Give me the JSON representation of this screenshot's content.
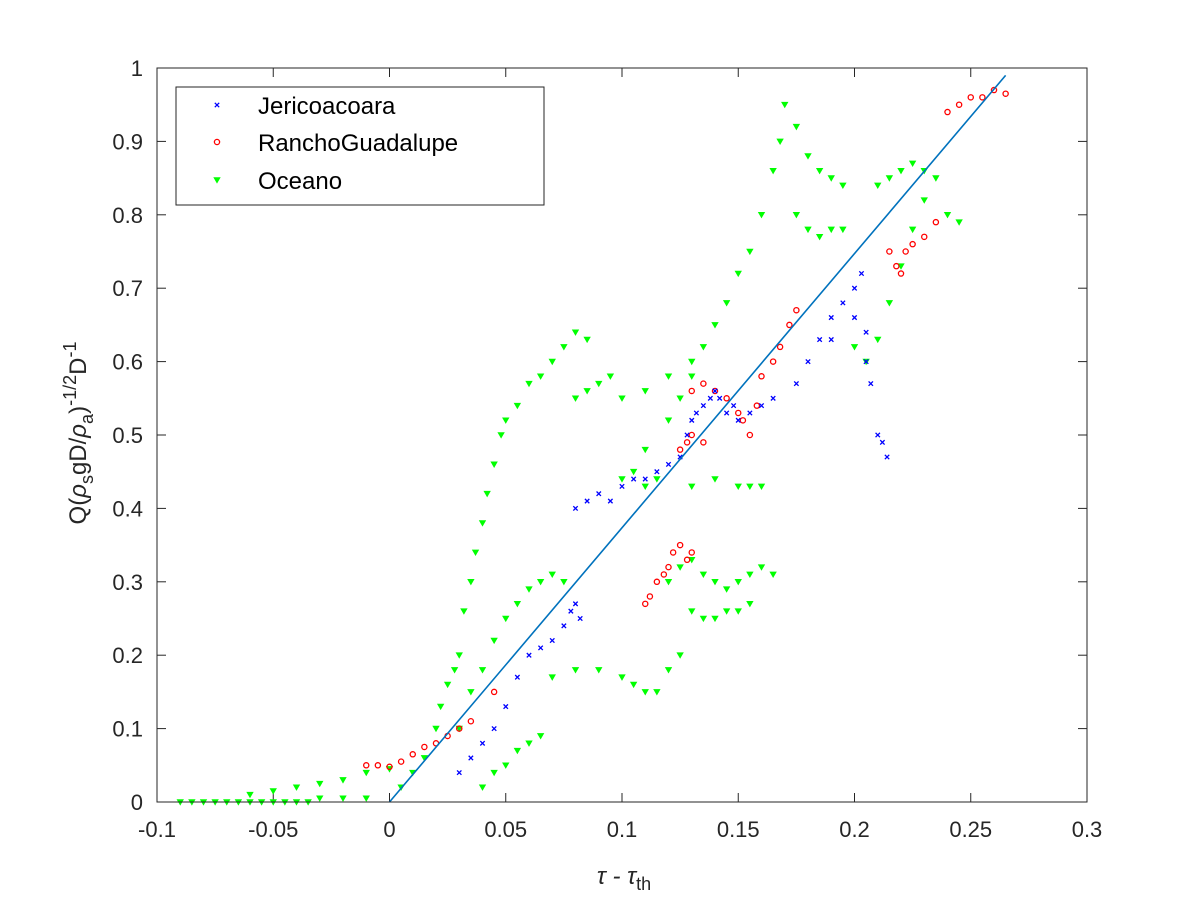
{
  "chart_data": {
    "type": "scatter",
    "title": "",
    "xlabel": "τ - τth",
    "xlabel_main": "τ - τ",
    "xlabel_sub": "th",
    "ylabel": "Q(ρsgD/ρa)^-1/2 D^-1",
    "ylabel_parts": {
      "q": "Q(",
      "rho1": "ρ",
      "sub_s": "s",
      "gd": "gD/",
      "rho2": "ρ",
      "sub_a": "a",
      "paren": ")",
      "exp1": "-1/2",
      "d": "D",
      "exp2": "-1"
    },
    "xlim": [
      -0.1,
      0.3
    ],
    "ylim": [
      0,
      1
    ],
    "xticks": [
      -0.1,
      -0.05,
      0,
      0.05,
      0.1,
      0.15,
      0.2,
      0.25,
      0.3
    ],
    "xtick_labels": [
      "-0.1",
      "-0.05",
      "0",
      "0.05",
      "0.1",
      "0.15",
      "0.2",
      "0.25",
      "0.3"
    ],
    "yticks": [
      0,
      0.1,
      0.2,
      0.3,
      0.4,
      0.5,
      0.6,
      0.7,
      0.8,
      0.9,
      1
    ],
    "ytick_labels": [
      "0",
      "0.1",
      "0.2",
      "0.3",
      "0.4",
      "0.5",
      "0.6",
      "0.7",
      "0.8",
      "0.9",
      "1"
    ],
    "grid": false,
    "legend_position": "top-left",
    "fit_line": {
      "color": "#0072BD",
      "points": [
        [
          0,
          0
        ],
        [
          0.265,
          0.99
        ]
      ]
    },
    "series": [
      {
        "name": "Jericoacoara",
        "color": "#0000FF",
        "marker": "x",
        "points": [
          [
            0.03,
            0.04
          ],
          [
            0.035,
            0.06
          ],
          [
            0.04,
            0.08
          ],
          [
            0.045,
            0.1
          ],
          [
            0.05,
            0.13
          ],
          [
            0.055,
            0.17
          ],
          [
            0.06,
            0.2
          ],
          [
            0.065,
            0.21
          ],
          [
            0.07,
            0.22
          ],
          [
            0.075,
            0.24
          ],
          [
            0.078,
            0.26
          ],
          [
            0.08,
            0.27
          ],
          [
            0.082,
            0.25
          ],
          [
            0.08,
            0.4
          ],
          [
            0.085,
            0.41
          ],
          [
            0.09,
            0.42
          ],
          [
            0.095,
            0.41
          ],
          [
            0.1,
            0.43
          ],
          [
            0.105,
            0.44
          ],
          [
            0.11,
            0.44
          ],
          [
            0.115,
            0.45
          ],
          [
            0.12,
            0.46
          ],
          [
            0.125,
            0.47
          ],
          [
            0.128,
            0.5
          ],
          [
            0.13,
            0.52
          ],
          [
            0.132,
            0.53
          ],
          [
            0.135,
            0.54
          ],
          [
            0.138,
            0.55
          ],
          [
            0.14,
            0.56
          ],
          [
            0.142,
            0.55
          ],
          [
            0.145,
            0.53
          ],
          [
            0.148,
            0.54
          ],
          [
            0.15,
            0.52
          ],
          [
            0.155,
            0.53
          ],
          [
            0.16,
            0.54
          ],
          [
            0.165,
            0.55
          ],
          [
            0.175,
            0.57
          ],
          [
            0.18,
            0.6
          ],
          [
            0.185,
            0.63
          ],
          [
            0.19,
            0.66
          ],
          [
            0.195,
            0.68
          ],
          [
            0.2,
            0.7
          ],
          [
            0.203,
            0.72
          ],
          [
            0.205,
            0.6
          ],
          [
            0.207,
            0.57
          ],
          [
            0.21,
            0.5
          ],
          [
            0.212,
            0.49
          ],
          [
            0.214,
            0.47
          ],
          [
            0.205,
            0.64
          ],
          [
            0.2,
            0.66
          ],
          [
            0.19,
            0.63
          ]
        ]
      },
      {
        "name": "RanchoGuadalupe",
        "color": "#FF0000",
        "marker": "o",
        "points": [
          [
            -0.01,
            0.05
          ],
          [
            -0.005,
            0.05
          ],
          [
            0,
            0.048
          ],
          [
            0.005,
            0.055
          ],
          [
            0.01,
            0.065
          ],
          [
            0.015,
            0.075
          ],
          [
            0.02,
            0.08
          ],
          [
            0.025,
            0.09
          ],
          [
            0.03,
            0.1
          ],
          [
            0.035,
            0.11
          ],
          [
            0.045,
            0.15
          ],
          [
            0.11,
            0.27
          ],
          [
            0.112,
            0.28
          ],
          [
            0.115,
            0.3
          ],
          [
            0.118,
            0.31
          ],
          [
            0.12,
            0.32
          ],
          [
            0.122,
            0.34
          ],
          [
            0.125,
            0.35
          ],
          [
            0.13,
            0.34
          ],
          [
            0.128,
            0.33
          ],
          [
            0.125,
            0.48
          ],
          [
            0.128,
            0.49
          ],
          [
            0.13,
            0.5
          ],
          [
            0.135,
            0.49
          ],
          [
            0.13,
            0.56
          ],
          [
            0.135,
            0.57
          ],
          [
            0.14,
            0.56
          ],
          [
            0.145,
            0.55
          ],
          [
            0.15,
            0.53
          ],
          [
            0.152,
            0.52
          ],
          [
            0.155,
            0.5
          ],
          [
            0.158,
            0.54
          ],
          [
            0.16,
            0.58
          ],
          [
            0.165,
            0.6
          ],
          [
            0.168,
            0.62
          ],
          [
            0.172,
            0.65
          ],
          [
            0.175,
            0.67
          ],
          [
            0.215,
            0.75
          ],
          [
            0.218,
            0.73
          ],
          [
            0.22,
            0.72
          ],
          [
            0.222,
            0.75
          ],
          [
            0.225,
            0.76
          ],
          [
            0.23,
            0.77
          ],
          [
            0.235,
            0.79
          ],
          [
            0.24,
            0.94
          ],
          [
            0.245,
            0.95
          ],
          [
            0.25,
            0.96
          ],
          [
            0.255,
            0.96
          ],
          [
            0.26,
            0.97
          ],
          [
            0.265,
            0.965
          ]
        ]
      },
      {
        "name": "Oceano",
        "color": "#00FF00",
        "marker": "v",
        "points": [
          [
            -0.09,
            0
          ],
          [
            -0.085,
            0
          ],
          [
            -0.08,
            0
          ],
          [
            -0.075,
            0
          ],
          [
            -0.07,
            0
          ],
          [
            -0.065,
            0
          ],
          [
            -0.06,
            0
          ],
          [
            -0.055,
            0
          ],
          [
            -0.05,
            0
          ],
          [
            -0.045,
            0
          ],
          [
            -0.04,
            0
          ],
          [
            -0.035,
            0
          ],
          [
            -0.03,
            0.005
          ],
          [
            -0.02,
            0.005
          ],
          [
            -0.01,
            0.005
          ],
          [
            -0.06,
            0.01
          ],
          [
            -0.05,
            0.015
          ],
          [
            -0.04,
            0.02
          ],
          [
            -0.03,
            0.025
          ],
          [
            -0.02,
            0.03
          ],
          [
            -0.01,
            0.04
          ],
          [
            0,
            0.045
          ],
          [
            0.005,
            0.02
          ],
          [
            0.01,
            0.04
          ],
          [
            0.015,
            0.06
          ],
          [
            0.02,
            0.1
          ],
          [
            0.022,
            0.13
          ],
          [
            0.025,
            0.16
          ],
          [
            0.028,
            0.18
          ],
          [
            0.03,
            0.2
          ],
          [
            0.032,
            0.26
          ],
          [
            0.035,
            0.3
          ],
          [
            0.037,
            0.34
          ],
          [
            0.04,
            0.38
          ],
          [
            0.042,
            0.42
          ],
          [
            0.045,
            0.46
          ],
          [
            0.048,
            0.5
          ],
          [
            0.05,
            0.52
          ],
          [
            0.055,
            0.54
          ],
          [
            0.06,
            0.57
          ],
          [
            0.065,
            0.58
          ],
          [
            0.07,
            0.6
          ],
          [
            0.075,
            0.62
          ],
          [
            0.08,
            0.64
          ],
          [
            0.085,
            0.63
          ],
          [
            0.04,
            0.02
          ],
          [
            0.045,
            0.04
          ],
          [
            0.05,
            0.05
          ],
          [
            0.055,
            0.07
          ],
          [
            0.06,
            0.08
          ],
          [
            0.065,
            0.09
          ],
          [
            0.03,
            0.1
          ],
          [
            0.035,
            0.15
          ],
          [
            0.04,
            0.18
          ],
          [
            0.045,
            0.22
          ],
          [
            0.05,
            0.25
          ],
          [
            0.055,
            0.27
          ],
          [
            0.06,
            0.29
          ],
          [
            0.065,
            0.3
          ],
          [
            0.07,
            0.31
          ],
          [
            0.075,
            0.3
          ],
          [
            0.08,
            0.55
          ],
          [
            0.085,
            0.56
          ],
          [
            0.09,
            0.57
          ],
          [
            0.095,
            0.58
          ],
          [
            0.1,
            0.55
          ],
          [
            0.11,
            0.56
          ],
          [
            0.12,
            0.58
          ],
          [
            0.1,
            0.44
          ],
          [
            0.105,
            0.45
          ],
          [
            0.11,
            0.43
          ],
          [
            0.115,
            0.44
          ],
          [
            0.12,
            0.3
          ],
          [
            0.125,
            0.32
          ],
          [
            0.13,
            0.33
          ],
          [
            0.135,
            0.31
          ],
          [
            0.14,
            0.3
          ],
          [
            0.145,
            0.29
          ],
          [
            0.15,
            0.3
          ],
          [
            0.155,
            0.31
          ],
          [
            0.16,
            0.32
          ],
          [
            0.165,
            0.31
          ],
          [
            0.13,
            0.26
          ],
          [
            0.135,
            0.25
          ],
          [
            0.14,
            0.25
          ],
          [
            0.145,
            0.26
          ],
          [
            0.15,
            0.26
          ],
          [
            0.155,
            0.27
          ],
          [
            0.07,
            0.17
          ],
          [
            0.08,
            0.18
          ],
          [
            0.09,
            0.18
          ],
          [
            0.1,
            0.17
          ],
          [
            0.105,
            0.16
          ],
          [
            0.11,
            0.15
          ],
          [
            0.115,
            0.15
          ],
          [
            0.12,
            0.18
          ],
          [
            0.125,
            0.2
          ],
          [
            0.13,
            0.43
          ],
          [
            0.14,
            0.44
          ],
          [
            0.15,
            0.43
          ],
          [
            0.155,
            0.43
          ],
          [
            0.16,
            0.43
          ],
          [
            0.13,
            0.6
          ],
          [
            0.135,
            0.62
          ],
          [
            0.14,
            0.65
          ],
          [
            0.145,
            0.68
          ],
          [
            0.15,
            0.72
          ],
          [
            0.155,
            0.75
          ],
          [
            0.16,
            0.8
          ],
          [
            0.165,
            0.86
          ],
          [
            0.168,
            0.9
          ],
          [
            0.17,
            0.95
          ],
          [
            0.175,
            0.92
          ],
          [
            0.18,
            0.88
          ],
          [
            0.185,
            0.86
          ],
          [
            0.19,
            0.85
          ],
          [
            0.195,
            0.84
          ],
          [
            0.175,
            0.8
          ],
          [
            0.18,
            0.78
          ],
          [
            0.185,
            0.77
          ],
          [
            0.19,
            0.78
          ],
          [
            0.195,
            0.78
          ],
          [
            0.2,
            0.62
          ],
          [
            0.205,
            0.6
          ],
          [
            0.21,
            0.63
          ],
          [
            0.215,
            0.68
          ],
          [
            0.22,
            0.73
          ],
          [
            0.225,
            0.78
          ],
          [
            0.23,
            0.82
          ],
          [
            0.235,
            0.85
          ],
          [
            0.24,
            0.8
          ],
          [
            0.245,
            0.79
          ],
          [
            0.21,
            0.84
          ],
          [
            0.215,
            0.85
          ],
          [
            0.22,
            0.86
          ],
          [
            0.225,
            0.87
          ],
          [
            0.23,
            0.86
          ],
          [
            0.11,
            0.48
          ],
          [
            0.12,
            0.52
          ],
          [
            0.125,
            0.55
          ],
          [
            0.13,
            0.58
          ]
        ]
      }
    ]
  }
}
